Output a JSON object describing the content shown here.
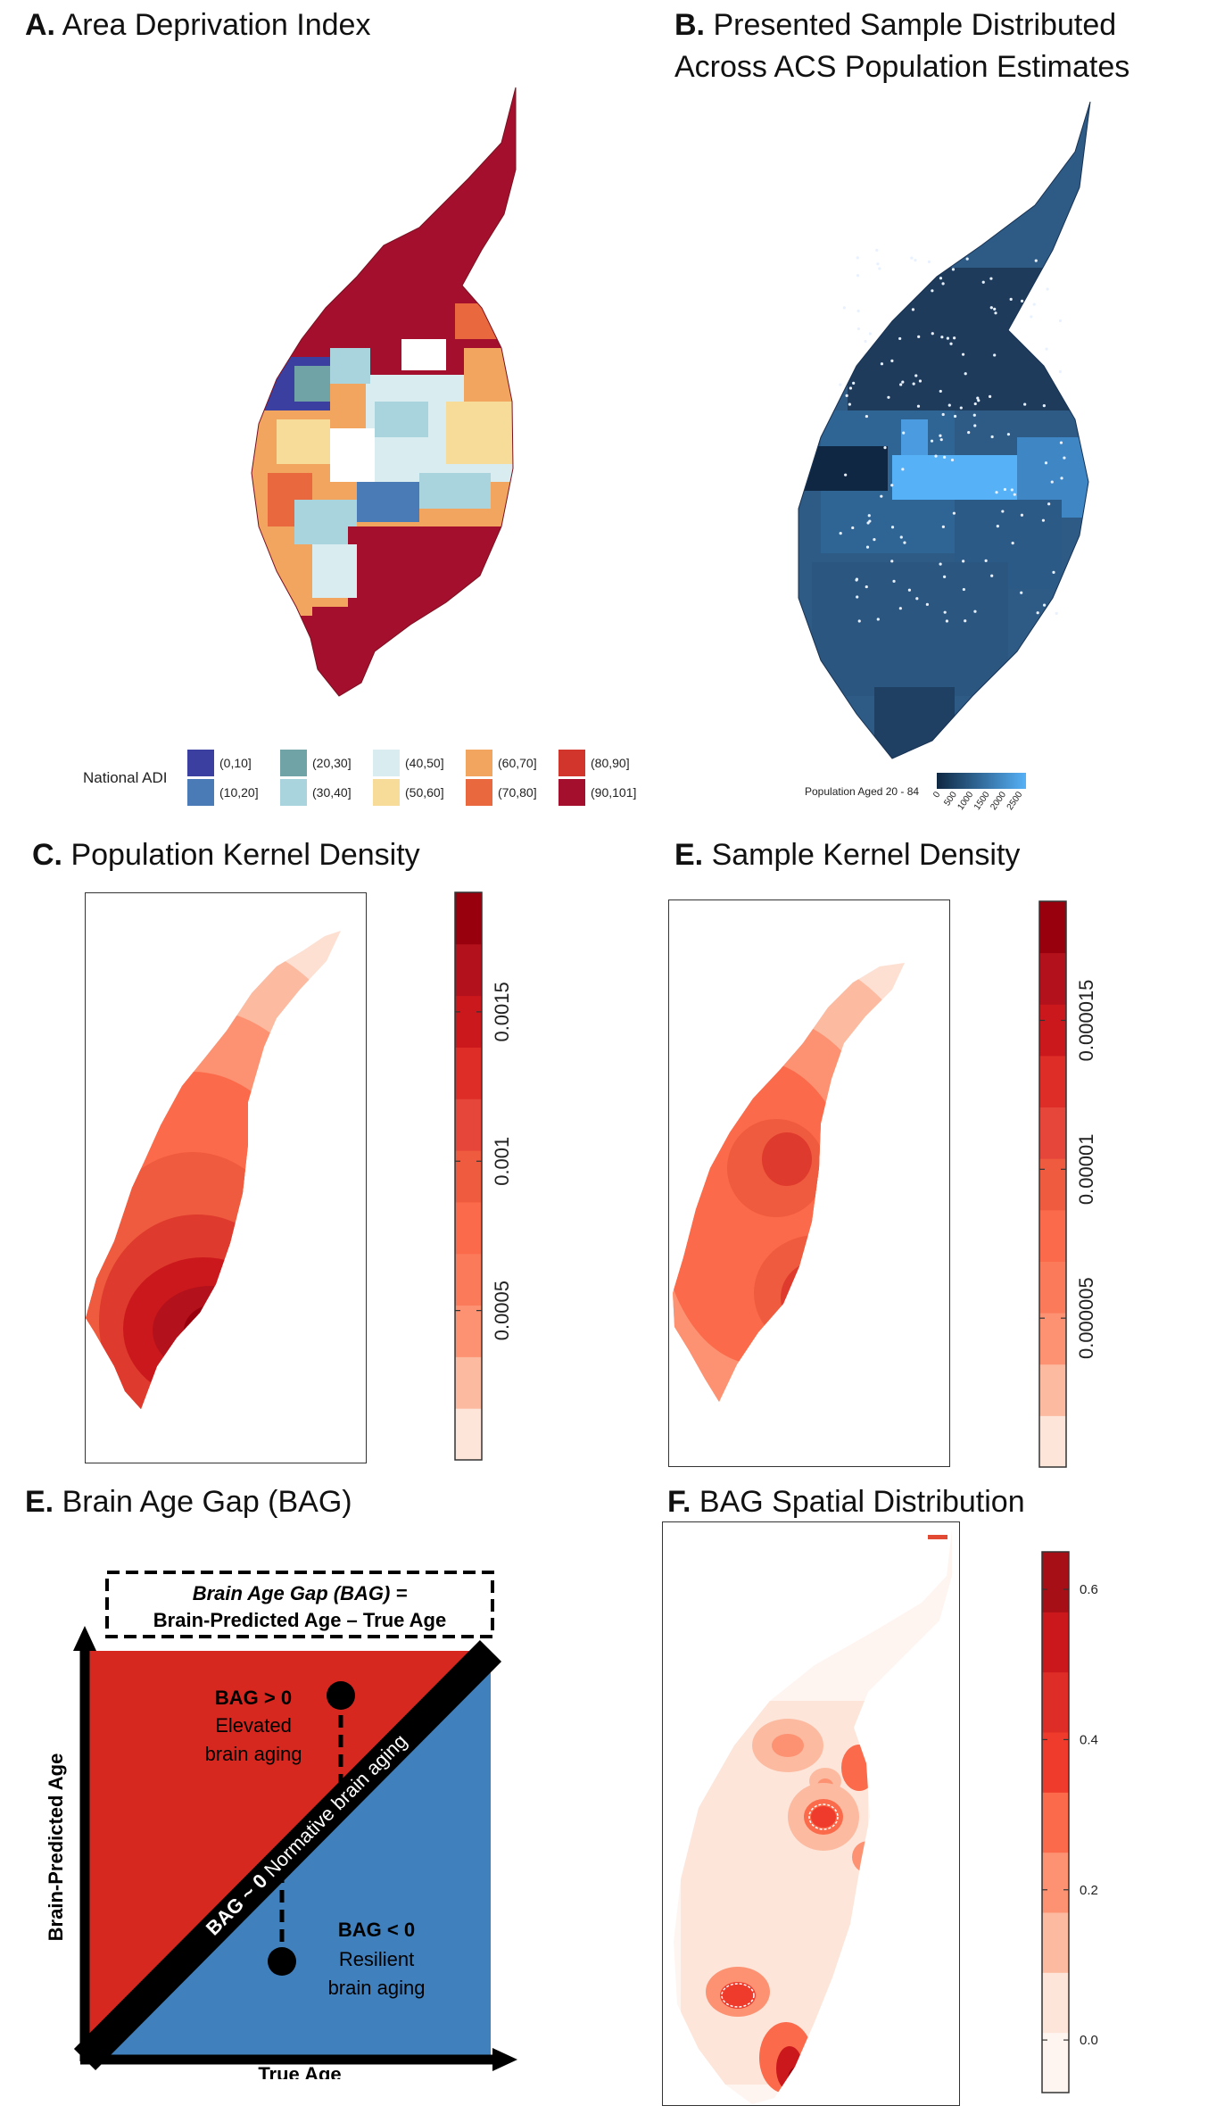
{
  "panels": {
    "a": {
      "letter": "A.",
      "title": "Area Deprivation Index"
    },
    "b": {
      "letter": "B.",
      "title_line1": "Presented Sample Distributed",
      "title_line2": "Across ACS Population Estimates"
    },
    "c": {
      "letter": "C.",
      "title": "Population Kernel Density"
    },
    "e1": {
      "letter": "E.",
      "title": "Sample Kernel Density"
    },
    "e2": {
      "letter": "E.",
      "title": "Brain Age Gap (BAG)"
    },
    "f": {
      "letter": "F.",
      "title": "BAG Spatial Distribution"
    }
  },
  "adi_legend": {
    "title": "National ADI",
    "bins": [
      {
        "label": "(0,10]",
        "color": "#3b3fa0"
      },
      {
        "label": "(10,20]",
        "color": "#4a7bb7"
      },
      {
        "label": "(20,30]",
        "color": "#6fa3a6"
      },
      {
        "label": "(30,40]",
        "color": "#a9d4de"
      },
      {
        "label": "(40,50]",
        "color": "#d9ecf0"
      },
      {
        "label": "(50,60]",
        "color": "#f6dc98"
      },
      {
        "label": "(60,70]",
        "color": "#f2a55f"
      },
      {
        "label": "(70,80]",
        "color": "#e9683e"
      },
      {
        "label": "(80,90]",
        "color": "#d2352c"
      },
      {
        "label": "(90,101]",
        "color": "#a50f2e"
      }
    ]
  },
  "population_legend": {
    "title": "Population Aged 20 - 84",
    "ticks": [
      "0",
      "500",
      "1000",
      "1500",
      "2000",
      "2500"
    ],
    "color_low": "#0f2742",
    "color_high": "#56b1f7"
  },
  "kde_population": {
    "ticks": [
      "0.0005",
      "0.001",
      "0.0015"
    ],
    "tick_values": [
      0.0005,
      0.001,
      0.0015
    ],
    "max": 0.0019
  },
  "kde_sample": {
    "ticks": [
      "0.000005",
      "0.00001",
      "0.000015"
    ],
    "tick_values": [
      5e-06,
      1e-05,
      1.5e-05
    ],
    "max": 1.9e-05
  },
  "bag_distribution": {
    "ticks": [
      "0.0",
      "0.2",
      "0.4",
      "0.6"
    ],
    "tick_values": [
      0.0,
      0.2,
      0.4,
      0.6
    ],
    "min": -0.07,
    "max": 0.65
  },
  "bag_diagram": {
    "formula_line1": "Brain Age Gap (BAG) =",
    "formula_line2": "Brain-Predicted Age – True Age",
    "y_axis": "Brain-Predicted Age",
    "x_axis": "True Age",
    "diagonal": "BAG ~ 0",
    "diagonal_desc": "Normative brain aging",
    "upper_head": "BAG > 0",
    "upper_line1": "Elevated",
    "upper_line2": "brain aging",
    "lower_head": "BAG < 0",
    "lower_line1": "Resilient",
    "lower_line2": "brain aging",
    "upper_color": "#d7281f",
    "lower_color": "#3f80bd"
  }
}
